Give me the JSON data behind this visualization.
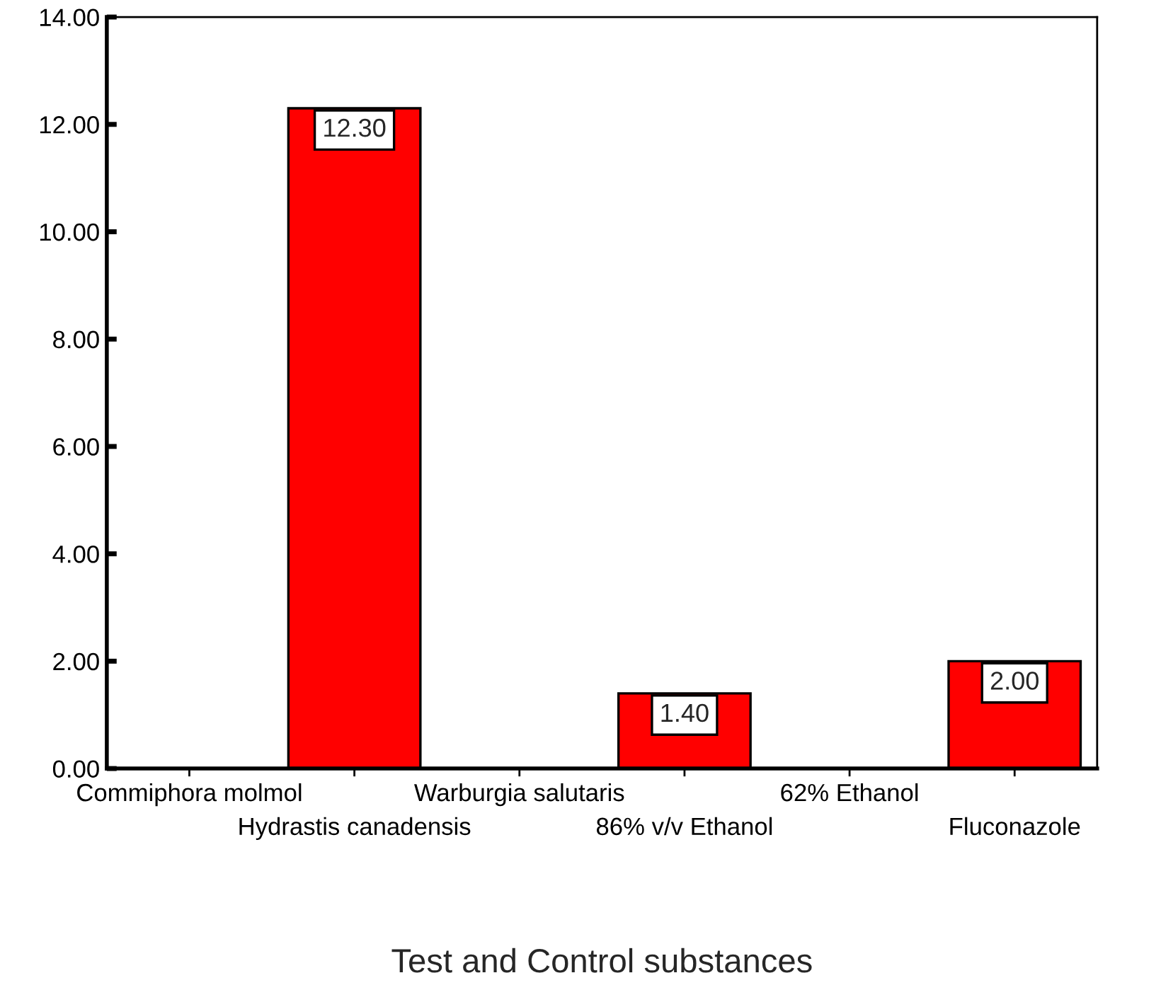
{
  "chart_data": {
    "type": "bar",
    "xlabel": "Test and Control substances",
    "categories": [
      "Commiphora molmol",
      "Hydrastis canadensis",
      "Warburgia salutaris",
      "86% v/v Ethanol",
      "62% Ethanol",
      "Fluconazole"
    ],
    "values": [
      0,
      12.3,
      0,
      1.4,
      0,
      2.0
    ],
    "value_labels": [
      null,
      "12.30",
      null,
      "1.40",
      null,
      "2.00"
    ],
    "color": "#ff0000",
    "ylim": [
      0,
      14
    ],
    "yticks": [
      {
        "value": 0,
        "label": "0.00"
      },
      {
        "value": 2,
        "label": "2.00"
      },
      {
        "value": 4,
        "label": "4.00"
      },
      {
        "value": 6,
        "label": "6.00"
      },
      {
        "value": 8,
        "label": "8.00"
      },
      {
        "value": 10,
        "label": "10.00"
      },
      {
        "value": 12,
        "label": "12.00"
      },
      {
        "value": 14,
        "label": "14.00"
      }
    ],
    "grid": false,
    "legend": false
  }
}
